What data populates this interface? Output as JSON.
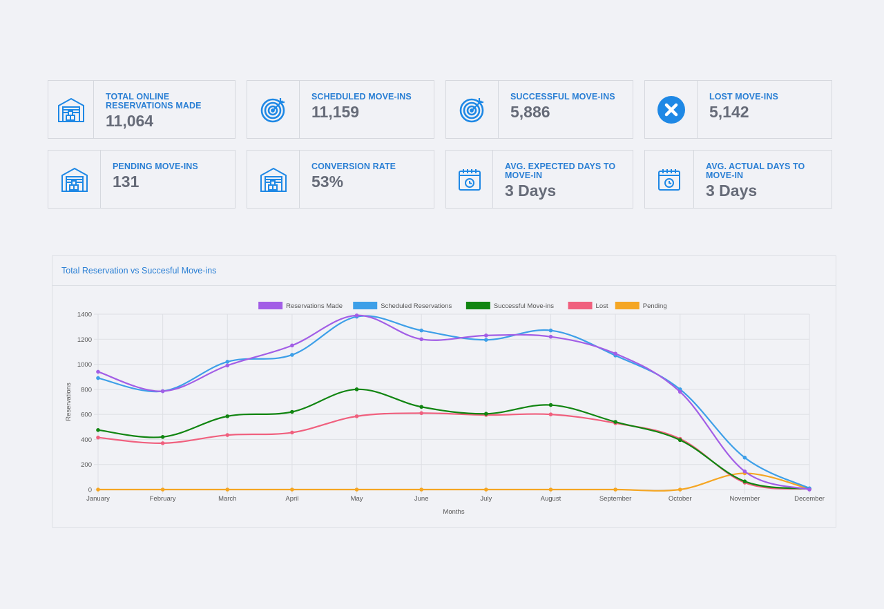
{
  "colors": {
    "accent": "#2a7fd4",
    "icon_blue": "#1e88e5",
    "value_gray": "#666b78",
    "background": "#f1f2f6"
  },
  "cards": [
    {
      "name": "total-online-reservations",
      "label": "Total Online Reservations Made",
      "value": "11,064",
      "icon": "warehouse-icon"
    },
    {
      "name": "scheduled-move-ins",
      "label": "Scheduled Move-ins",
      "value": "11,159",
      "icon": "target-icon"
    },
    {
      "name": "successful-move-ins",
      "label": "Successful Move-ins",
      "value": "5,886",
      "icon": "target-icon"
    },
    {
      "name": "lost-move-ins",
      "label": "Lost Move-ins",
      "value": "5,142",
      "icon": "close-circle-icon"
    },
    {
      "name": "pending-move-ins",
      "label": "Pending Move-ins",
      "value": "131",
      "icon": "warehouse-icon"
    },
    {
      "name": "conversion-rate",
      "label": "Conversion Rate",
      "value": "53%",
      "icon": "warehouse-icon"
    },
    {
      "name": "avg-expected-days",
      "label": "Avg. Expected Days to Move-in",
      "value": "3 Days",
      "icon": "calendar-clock-icon"
    },
    {
      "name": "avg-actual-days",
      "label": "Avg. Actual Days to Move-in",
      "value": "3 Days",
      "icon": "calendar-clock-icon"
    }
  ],
  "chart_panel": {
    "title": "Total Reservation vs Succesful Move-ins"
  },
  "chart_data": {
    "type": "line",
    "xlabel": "Months",
    "ylabel": "Reservations",
    "ylim": [
      0,
      1400
    ],
    "yticks": [
      "0",
      "200",
      "400",
      "600",
      "800",
      "1000",
      "1200",
      "1400"
    ],
    "grid": true,
    "legend_position": "top",
    "categories": [
      "January",
      "February",
      "March",
      "April",
      "May",
      "June",
      "July",
      "August",
      "September",
      "October",
      "November",
      "December"
    ],
    "series": [
      {
        "name": "Reservations Made",
        "color": "#a25ee6",
        "values": [
          940,
          785,
          990,
          1150,
          1390,
          1200,
          1230,
          1220,
          1085,
          780,
          145,
          0
        ]
      },
      {
        "name": "Scheduled Reservations",
        "color": "#3d9fe8",
        "values": [
          890,
          785,
          1020,
          1075,
          1380,
          1270,
          1195,
          1270,
          1070,
          800,
          255,
          10
        ]
      },
      {
        "name": "Successful Move-ins",
        "color": "#118511",
        "values": [
          475,
          420,
          585,
          620,
          800,
          660,
          605,
          675,
          540,
          395,
          65,
          5
        ]
      },
      {
        "name": "Lost",
        "color": "#f0607e",
        "values": [
          415,
          370,
          435,
          455,
          585,
          610,
          595,
          600,
          530,
          405,
          55,
          5
        ]
      },
      {
        "name": "Pending",
        "color": "#f5a623",
        "values": [
          0,
          0,
          0,
          0,
          0,
          0,
          0,
          0,
          0,
          0,
          130,
          5
        ]
      }
    ]
  }
}
